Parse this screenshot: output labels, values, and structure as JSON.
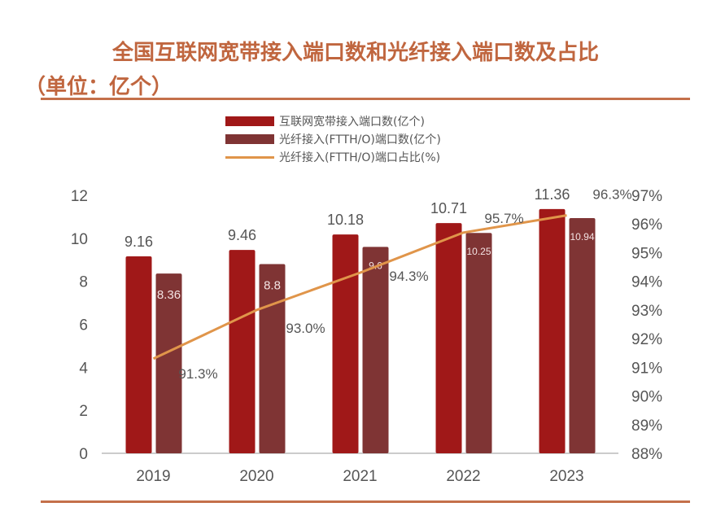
{
  "title_line1": "全国互联网宽带接入端口数和光纤接入端口数及占比",
  "title_line2": "（单位：亿个）",
  "chart_data": {
    "type": "bar+line",
    "categories": [
      "2019",
      "2020",
      "2021",
      "2022",
      "2023"
    ],
    "series": [
      {
        "name": "互联网宽带接入端口数(亿个)",
        "type": "bar",
        "axis": "left",
        "color": "#a01818",
        "values": [
          9.16,
          9.46,
          10.18,
          10.71,
          11.36
        ],
        "labels": [
          "9.16",
          "9.46",
          "10.18",
          "10.71",
          "11.36"
        ]
      },
      {
        "name": "光纤接入(FTTH/O)端口数(亿个)",
        "type": "bar",
        "axis": "left",
        "color": "#7f3434",
        "values": [
          8.36,
          8.8,
          9.6,
          10.25,
          10.94
        ],
        "labels": [
          "8.36",
          "8.8",
          "9.6",
          "10.25",
          "10.94"
        ]
      },
      {
        "name": "光纤接入(FTTH/O)端口占比(%)",
        "type": "line",
        "axis": "right",
        "color": "#e0954a",
        "values": [
          91.3,
          93.0,
          94.3,
          95.7,
          96.3
        ],
        "labels": [
          "91.3%",
          "93.0%",
          "94.3%",
          "95.7%",
          "96.3%"
        ]
      }
    ],
    "left_axis": {
      "range": [
        0,
        12
      ],
      "ticks": [
        "0",
        "2",
        "4",
        "6",
        "8",
        "10",
        "12"
      ]
    },
    "right_axis": {
      "range": [
        88,
        97
      ],
      "ticks": [
        "88%",
        "89%",
        "90%",
        "91%",
        "92%",
        "93%",
        "94%",
        "95%",
        "96%",
        "97%"
      ]
    },
    "legend_position": "top",
    "grid": false
  }
}
